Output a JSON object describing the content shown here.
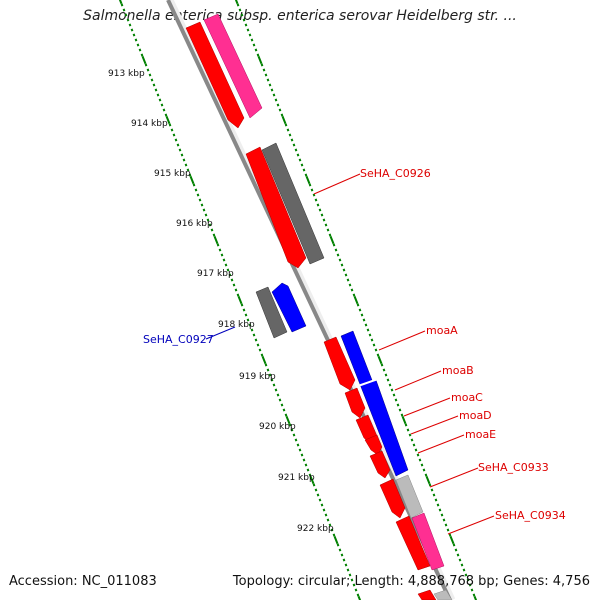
{
  "header": {
    "title": "Salmonella enterica subsp. enterica serovar Heidelberg str. ..."
  },
  "footer": {
    "accession": "Accession: NC_011083",
    "summary": "Topology: circular; Length: 4,888,768 bp; Genes: 4,756"
  },
  "scale": {
    "ticks": [
      "913 kbp",
      "914 kbp",
      "915 kbp",
      "916 kbp",
      "917 kbp",
      "918 kbp",
      "919 kbp",
      "920 kbp",
      "921 kbp",
      "922 kbp"
    ]
  },
  "genes": [
    {
      "label": "SeHA_C0926",
      "color": "#dd0000"
    },
    {
      "label": "SeHA_C0927",
      "color": "#0000bb"
    },
    {
      "label": "moaA",
      "color": "#dd0000"
    },
    {
      "label": "moaB",
      "color": "#dd0000"
    },
    {
      "label": "moaC",
      "color": "#dd0000"
    },
    {
      "label": "moaD",
      "color": "#dd0000"
    },
    {
      "label": "moaE",
      "color": "#dd0000"
    },
    {
      "label": "SeHA_C0933",
      "color": "#dd0000"
    },
    {
      "label": "SeHA_C0934",
      "color": "#dd0000"
    }
  ],
  "colors": {
    "cds_forward": "#ff0000",
    "cds_reverse_blue": "#0000ff",
    "ortholog_pink": "#ff2f92",
    "ortholog_gray": "#666666",
    "ortholog_lightgray": "#bbbbbb",
    "backbone": "#888888",
    "ruler": "#008000"
  }
}
